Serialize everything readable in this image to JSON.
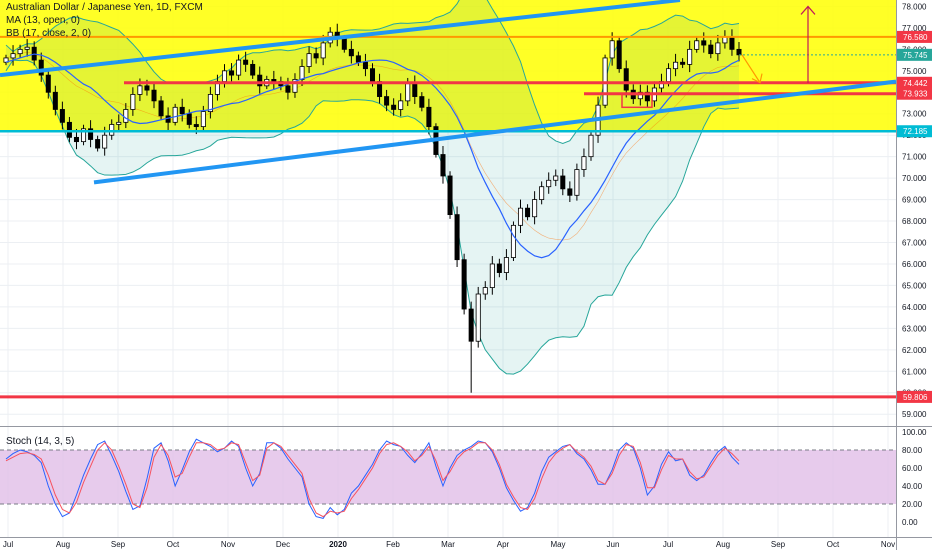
{
  "chart_data": [
    {
      "type": "candlestick",
      "legend": [
        "Australian Dollar / Japanese Yen, 1D, FXCM",
        "MA (13, open, 0)",
        "BB (17, close, 2, 0)"
      ],
      "y_axis_ticks": [
        "78.000",
        "77.000",
        "76.000",
        "75.000",
        "74.000",
        "73.000",
        "72.000",
        "71.000",
        "70.000",
        "69.000",
        "68.000",
        "67.000",
        "66.000",
        "65.000",
        "64.000",
        "63.000",
        "62.000",
        "61.000",
        "60.000",
        "59.000"
      ],
      "x_axis_ticks": [
        "Jul",
        "Aug",
        "Sep",
        "Oct",
        "Nov",
        "Dec",
        "2020",
        "Feb",
        "Mar",
        "Apr",
        "May",
        "Jun",
        "Jul",
        "Aug",
        "Sep",
        "Oct",
        "Nov"
      ],
      "ylim": [
        58.45,
        78.3
      ],
      "price_labels": [
        {
          "text": "76.580",
          "value": 76.58,
          "color": "#f23645"
        },
        {
          "text": "75.745",
          "value": 75.745,
          "color": "#26a69a"
        },
        {
          "text": "74.442",
          "value": 74.442,
          "color": "#f23645"
        },
        {
          "text": "73.933",
          "value": 73.933,
          "color": "#f23645"
        },
        {
          "text": "72.185",
          "value": 72.185,
          "color": "#00bcd4"
        },
        {
          "text": "59.806",
          "value": 59.806,
          "color": "#f23645"
        }
      ],
      "horizontal_levels": [
        76.58,
        74.442,
        73.933,
        72.185,
        59.806
      ],
      "highlight_zone": [
        72.185,
        78.3
      ],
      "candles_close": [
        75.6,
        75.8,
        76.0,
        76.1,
        75.5,
        74.8,
        74.0,
        73.2,
        72.6,
        71.9,
        71.7,
        72.3,
        71.8,
        71.4,
        72.0,
        72.5,
        72.6,
        73.2,
        73.9,
        74.3,
        74.1,
        73.6,
        72.9,
        72.6,
        73.3,
        73.0,
        72.5,
        72.4,
        73.1,
        73.9,
        74.5,
        75.0,
        74.8,
        75.5,
        75.3,
        74.8,
        74.3,
        74.6,
        74.5,
        74.3,
        74.0,
        74.6,
        75.2,
        75.8,
        75.6,
        76.3,
        76.8,
        76.5,
        76.0,
        75.7,
        75.4,
        75.1,
        74.5,
        73.8,
        73.4,
        73.2,
        73.6,
        74.4,
        73.8,
        73.3,
        72.4,
        71.1,
        70.1,
        68.3,
        66.2,
        63.9,
        62.4,
        64.6,
        64.9,
        66.0,
        65.6,
        66.3,
        67.8,
        68.6,
        68.2,
        69.0,
        69.6,
        69.9,
        70.1,
        69.5,
        69.2,
        70.4,
        71.0,
        72.0,
        73.4,
        75.6,
        76.4,
        75.1,
        74.1,
        73.7,
        74.0,
        73.6,
        74.2,
        74.5,
        75.1,
        75.4,
        75.3,
        76.0,
        76.4,
        76.2,
        75.8,
        76.3,
        76.6,
        76.0,
        75.745
      ],
      "ma": {
        "name": "MA (13, open, 0)",
        "period": 13
      },
      "bb": {
        "name": "BB (17, close, 2, 0)",
        "period": 17,
        "mult": 2
      },
      "annotations": [
        {
          "type": "trendline",
          "from": 74.8,
          "to": 78.3
        },
        {
          "type": "trendline",
          "from": 69.8,
          "to": 74.5
        },
        {
          "type": "arrow",
          "direction": "up",
          "from": 74.442,
          "to": 78.0
        },
        {
          "type": "arrow",
          "direction": "down",
          "from": 75.745,
          "to": 74.45
        }
      ]
    },
    {
      "type": "line",
      "legend": "Stoch (14, 3, 5)",
      "y_axis_ticks": [
        "100.00",
        "80.00",
        "60.00",
        "40.00",
        "20.00",
        "0.00"
      ],
      "ylim": [
        0,
        100
      ],
      "bands": [
        20,
        80
      ],
      "series": [
        {
          "name": "%K",
          "color": "#2962ff",
          "values": [
            70,
            76,
            80,
            78,
            74,
            66,
            40,
            20,
            6,
            10,
            30,
            52,
            70,
            86,
            90,
            74,
            56,
            34,
            14,
            18,
            48,
            82,
            88,
            68,
            40,
            58,
            78,
            92,
            88,
            84,
            78,
            82,
            90,
            84,
            60,
            40,
            54,
            88,
            88,
            82,
            70,
            60,
            50,
            20,
            6,
            4,
            16,
            8,
            14,
            32,
            40,
            52,
            64,
            80,
            90,
            86,
            84,
            74,
            66,
            76,
            88,
            62,
            40,
            60,
            74,
            80,
            84,
            90,
            88,
            78,
            60,
            38,
            24,
            12,
            16,
            32,
            56,
            72,
            78,
            84,
            86,
            76,
            70,
            58,
            42,
            42,
            58,
            80,
            88,
            82,
            60,
            30,
            40,
            64,
            78,
            68,
            70,
            52,
            46,
            52,
            66,
            78,
            84,
            72,
            64
          ]
        },
        {
          "name": "%D",
          "color": "#f7525f",
          "values": [
            68,
            72,
            76,
            77,
            75,
            70,
            52,
            30,
            14,
            10,
            22,
            44,
            62,
            80,
            88,
            80,
            62,
            42,
            20,
            16,
            38,
            72,
            86,
            74,
            50,
            54,
            72,
            88,
            88,
            86,
            80,
            82,
            88,
            86,
            66,
            46,
            52,
            82,
            88,
            84,
            74,
            64,
            54,
            26,
            10,
            6,
            12,
            10,
            12,
            26,
            36,
            48,
            60,
            76,
            86,
            88,
            84,
            78,
            68,
            74,
            84,
            68,
            46,
            56,
            70,
            78,
            82,
            88,
            88,
            80,
            64,
            42,
            28,
            16,
            14,
            26,
            48,
            66,
            76,
            82,
            86,
            78,
            72,
            62,
            46,
            42,
            54,
            74,
            86,
            84,
            66,
            38,
            38,
            58,
            74,
            70,
            70,
            56,
            48,
            50,
            62,
            74,
            82,
            76,
            68
          ]
        }
      ]
    }
  ]
}
